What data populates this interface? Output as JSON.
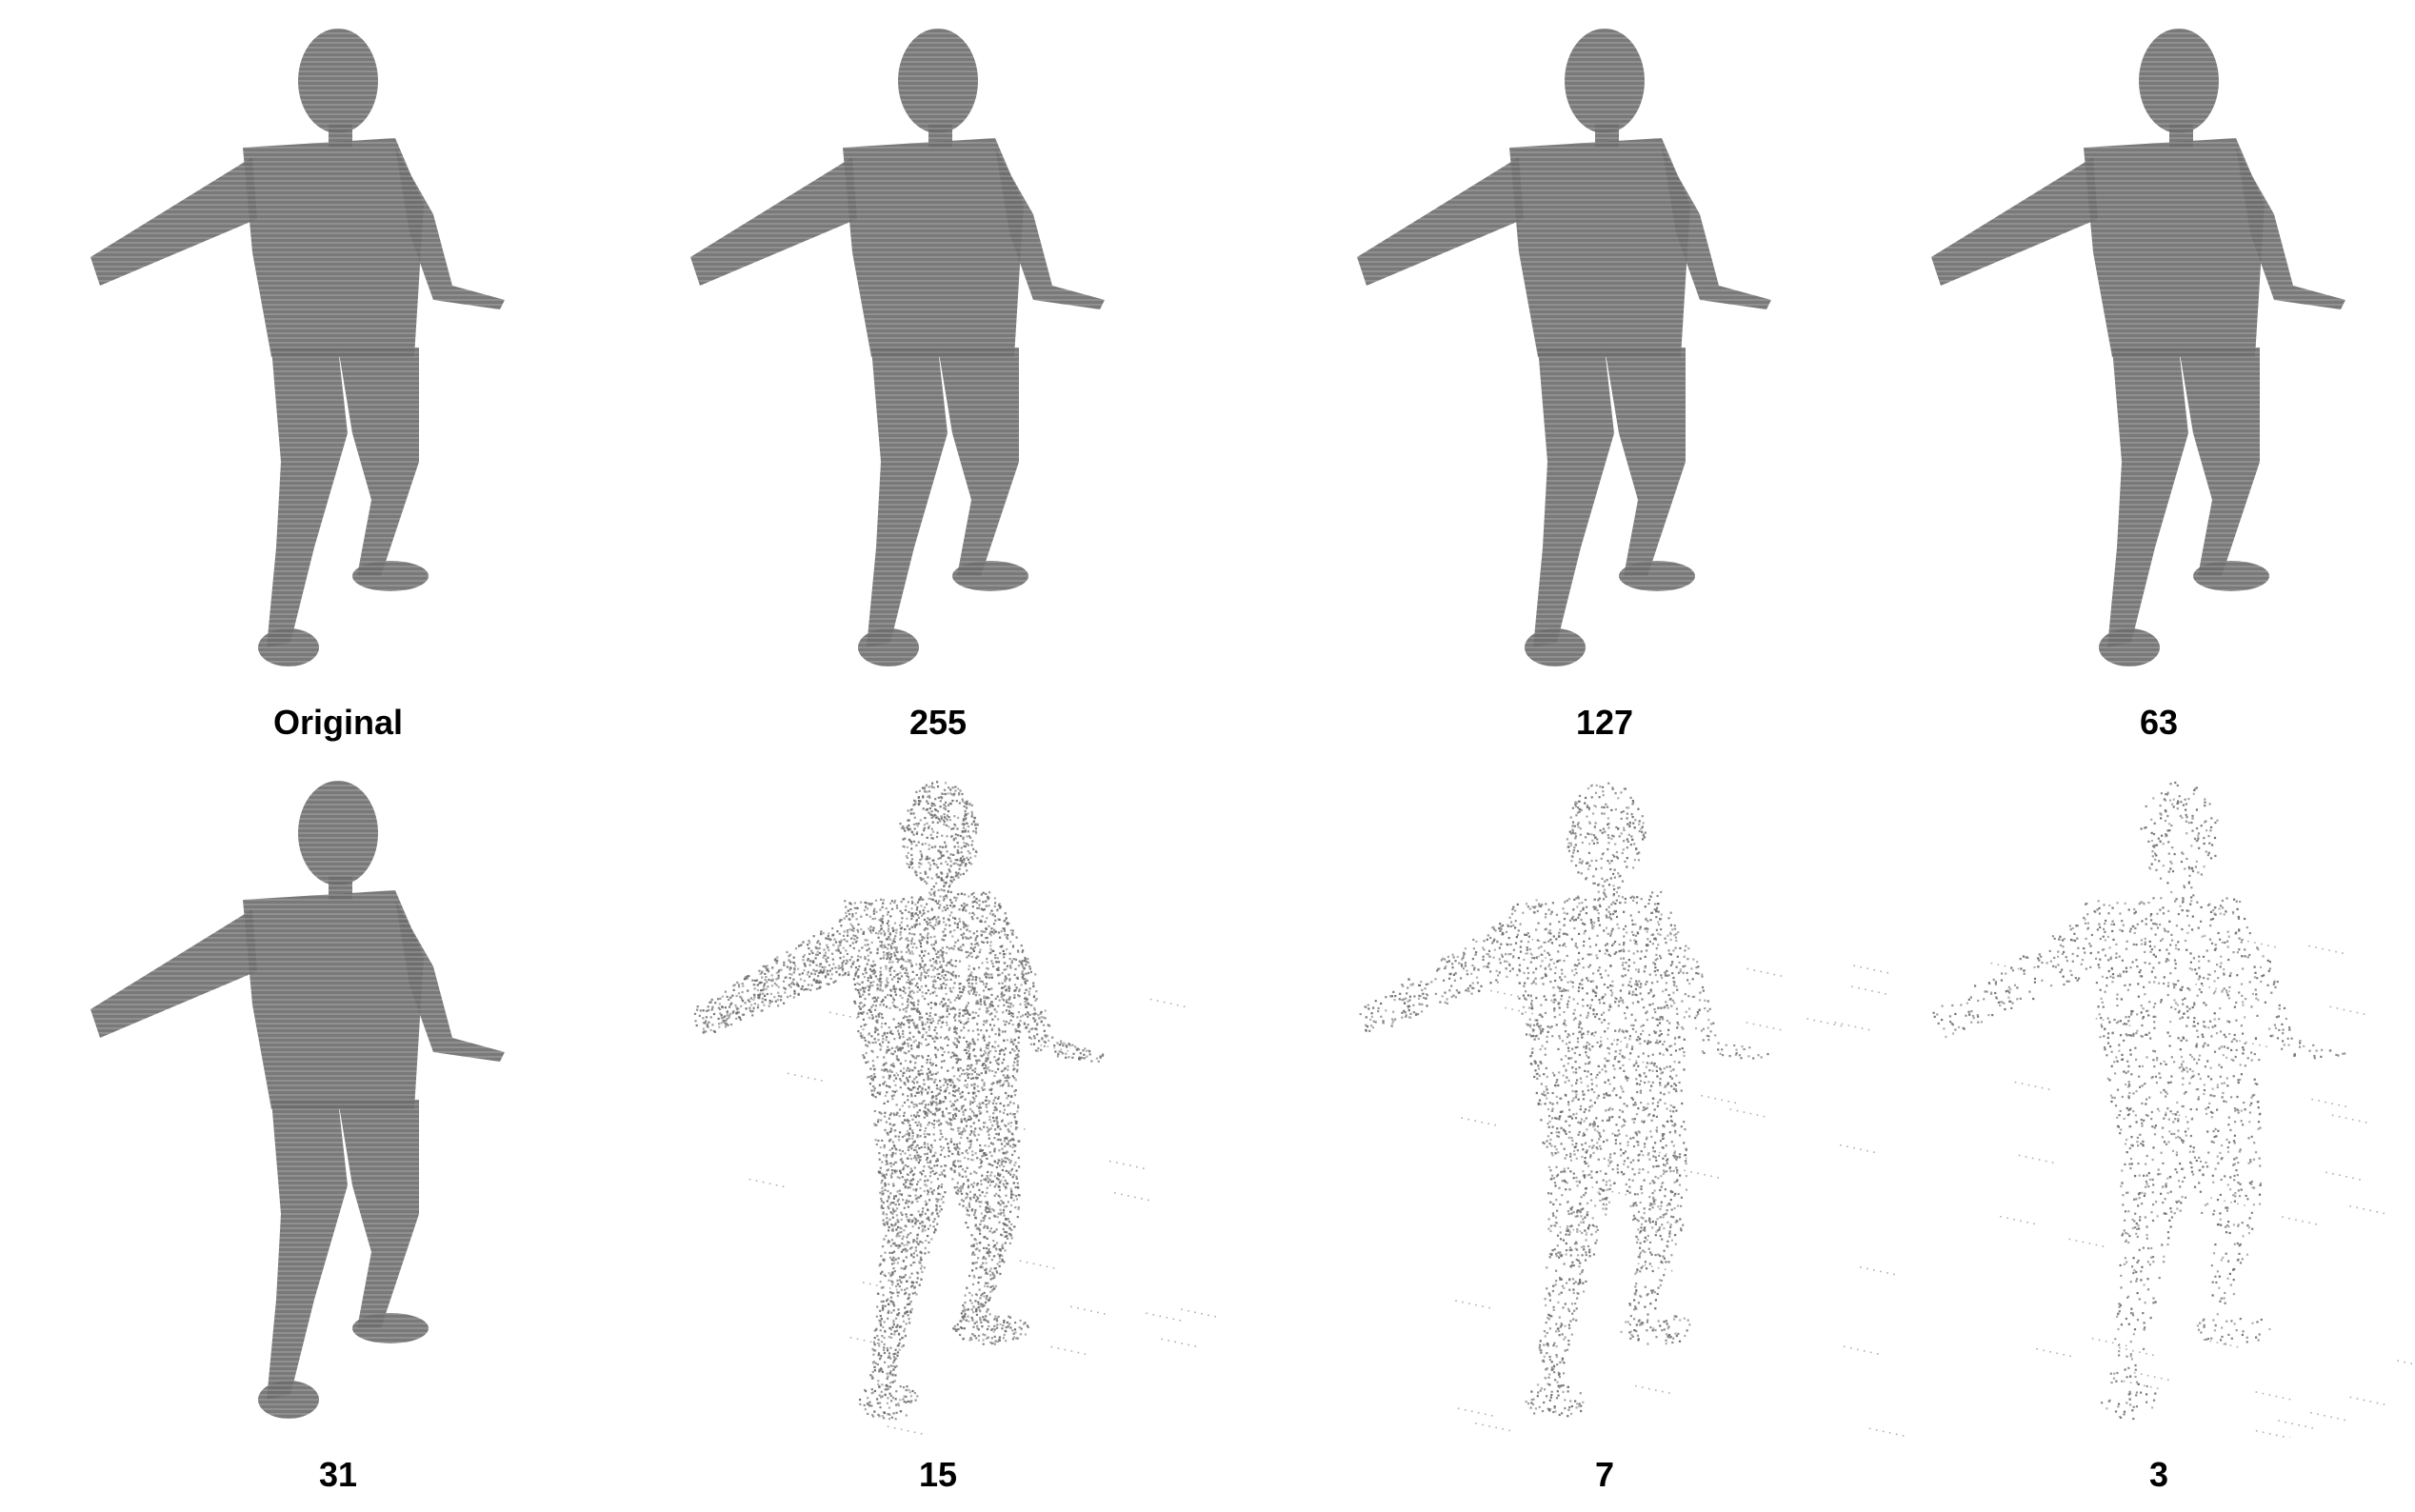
{
  "figure": {
    "panels": [
      {
        "label": "Original",
        "quality": "dense"
      },
      {
        "label": "255",
        "quality": "dense"
      },
      {
        "label": "127",
        "quality": "dense"
      },
      {
        "label": "63",
        "quality": "dense"
      },
      {
        "label": "31",
        "quality": "dense"
      },
      {
        "label": "15",
        "quality": "medium"
      },
      {
        "label": "7",
        "quality": "sparse"
      },
      {
        "label": "3",
        "quality": "very-sparse"
      }
    ],
    "point_color": "#6e6e6e"
  }
}
